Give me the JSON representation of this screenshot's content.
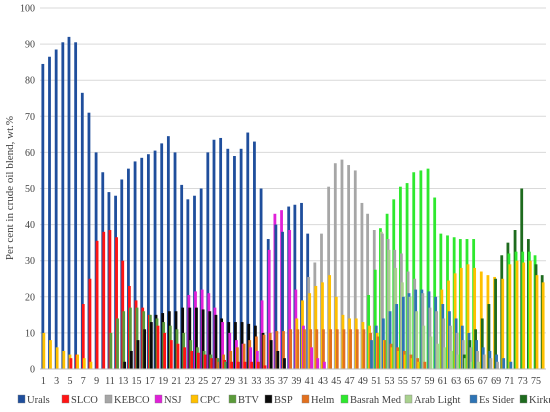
{
  "chart_data": {
    "type": "bar",
    "xlabel": "",
    "ylabel": "Per cent in crude oil blend, wt.%",
    "ylim": [
      0,
      100
    ],
    "yticks": [
      0,
      10,
      20,
      30,
      40,
      50,
      60,
      70,
      80,
      90,
      100
    ],
    "x_tick_labels": [
      "1",
      "3",
      "5",
      "7",
      "9",
      "11",
      "13",
      "15",
      "17",
      "19",
      "21",
      "23",
      "25",
      "27",
      "29",
      "31",
      "33",
      "35",
      "37",
      "39",
      "41",
      "43",
      "45",
      "47",
      "49",
      "51",
      "53",
      "55",
      "57",
      "59",
      "61",
      "63",
      "65",
      "67",
      "69",
      "71",
      "73",
      "75"
    ],
    "n_blends": 76,
    "grid": true,
    "legend_position": "bottom",
    "series": [
      {
        "name": "Urals",
        "color": "#1f4e9c",
        "values": [
          84.5,
          86.5,
          88.5,
          90.5,
          92,
          90.5,
          76.5,
          71,
          60,
          54.5,
          49,
          48,
          52.5,
          55.5,
          57.5,
          58.5,
          59.5,
          60.5,
          62.5,
          64.5,
          60,
          51,
          47,
          48,
          50,
          60,
          63.5,
          64,
          61,
          59,
          61,
          65.5,
          63,
          50,
          36,
          40,
          38,
          45,
          45.5,
          46,
          37.5,
          0,
          0,
          0,
          0,
          0,
          0,
          0,
          0,
          0,
          0,
          0,
          0,
          0,
          0,
          0,
          0,
          0,
          0,
          0,
          0,
          0,
          0,
          0,
          0,
          0,
          0,
          0,
          0,
          0,
          0,
          0,
          0,
          0,
          0,
          0
        ]
      },
      {
        "name": "SLCO",
        "color": "#ff1414",
        "values": [
          0,
          0,
          0,
          0,
          3,
          4,
          18,
          25,
          35.5,
          38,
          38.5,
          36.5,
          30,
          23,
          19,
          17,
          15,
          12,
          10,
          8,
          7,
          6,
          5,
          4.5,
          4,
          3,
          3,
          2.5,
          2,
          2,
          2,
          2,
          2,
          1,
          0,
          0,
          0,
          0,
          0,
          0,
          0,
          0,
          0,
          0,
          0,
          0,
          0,
          0,
          0,
          0,
          0,
          0,
          0,
          0,
          0,
          0,
          0,
          0,
          0,
          0,
          0,
          0,
          0,
          0,
          0,
          0,
          0,
          0,
          0,
          0,
          0,
          0,
          0,
          0,
          0,
          0
        ]
      },
      {
        "name": "KEBCO",
        "color": "#a6a6a6",
        "values": [
          0,
          0,
          0,
          0,
          0,
          0,
          0,
          0,
          0,
          0,
          0,
          0,
          0,
          0,
          0,
          0,
          0,
          0,
          0,
          0,
          0,
          0,
          0,
          0,
          0,
          0,
          0,
          0,
          0,
          0,
          0,
          0,
          0,
          0,
          0,
          0,
          0,
          0,
          0,
          0,
          25.5,
          29.5,
          37.5,
          50.5,
          57,
          58,
          56.5,
          55,
          46,
          43,
          38.5,
          37.5,
          36,
          33,
          32,
          27,
          25,
          21,
          17,
          16,
          14,
          12,
          10,
          8,
          6,
          5,
          4,
          3,
          2,
          0,
          0,
          0,
          0,
          0,
          0,
          0
        ]
      },
      {
        "name": "NSJ",
        "color": "#e020d8",
        "values": [
          0,
          0,
          0,
          0,
          0,
          0,
          0,
          0,
          0,
          0,
          0,
          0,
          0,
          0,
          0,
          0,
          0,
          0,
          0,
          0,
          0,
          0,
          20.5,
          21.5,
          22,
          21,
          17,
          13,
          10,
          8,
          7,
          6,
          5,
          19,
          33,
          43,
          44,
          38.5,
          22,
          12,
          6,
          3,
          2,
          0,
          0,
          0,
          0,
          0,
          0,
          0,
          0,
          0,
          0,
          0,
          0,
          0,
          0,
          0,
          0,
          0,
          0,
          0,
          0,
          0,
          0,
          0,
          0,
          0,
          0,
          0,
          0,
          0,
          0,
          0,
          0,
          0
        ]
      },
      {
        "name": "CPC",
        "color": "#ffc000",
        "values": [
          10,
          8,
          6,
          5,
          4,
          4,
          3,
          2,
          0,
          0,
          0,
          0,
          0,
          0,
          0,
          0,
          0,
          0,
          0,
          0,
          0,
          0,
          0,
          0,
          0,
          0,
          0,
          0,
          0,
          0,
          0,
          0,
          0,
          0,
          0,
          0,
          0,
          0,
          14,
          19,
          21,
          23,
          24,
          26,
          20,
          15,
          14,
          14,
          13,
          12,
          10,
          8,
          6,
          5,
          4,
          3,
          2,
          0,
          0,
          0,
          22,
          24.5,
          26.5,
          28,
          29,
          28,
          27,
          26,
          25.5,
          25,
          29,
          30,
          29.5,
          30,
          26,
          24
        ]
      },
      {
        "name": "BTV",
        "color": "#5b9b3a",
        "values": [
          0,
          0,
          0,
          0,
          0,
          0,
          0,
          0,
          0,
          0,
          10,
          14,
          16,
          17,
          17,
          16,
          15,
          14,
          13,
          12,
          11,
          10,
          8,
          6,
          5,
          4,
          3,
          2,
          0,
          0,
          0,
          0,
          0,
          0,
          0,
          0,
          0,
          0,
          0,
          0,
          0,
          0,
          0,
          0,
          0,
          0,
          0,
          0,
          0,
          0,
          0,
          0,
          0,
          0,
          0,
          0,
          0,
          0,
          0,
          0,
          0,
          0,
          0,
          0,
          0,
          0,
          0,
          0,
          0,
          0,
          0,
          0,
          0,
          0,
          0,
          0
        ]
      },
      {
        "name": "BSP",
        "color": "#0a0a0a",
        "values": [
          0,
          0,
          0,
          0,
          0,
          0,
          0,
          0,
          0,
          0,
          0,
          0,
          2,
          5,
          8,
          11,
          13,
          15,
          15.5,
          16,
          16,
          17,
          17,
          17,
          16.5,
          16,
          15,
          14,
          13,
          13,
          13,
          12.5,
          12,
          10,
          8,
          5,
          3,
          0,
          0,
          0,
          0,
          0,
          0,
          0,
          0,
          0,
          0,
          0,
          0,
          0,
          0,
          0,
          0,
          0,
          0,
          0,
          0,
          0,
          0,
          0,
          0,
          0,
          0,
          0,
          0,
          0,
          0,
          0,
          0,
          0,
          0,
          0,
          0,
          0,
          0,
          0
        ]
      },
      {
        "name": "Helm",
        "color": "#e2701e",
        "values": [
          0,
          0,
          0,
          0,
          0,
          0,
          0,
          0,
          0,
          0,
          0,
          0,
          0,
          0,
          0,
          0,
          0,
          0,
          0,
          0,
          0,
          0,
          0,
          0,
          0,
          0,
          2,
          4,
          5,
          6,
          7,
          8,
          9,
          9.5,
          10,
          10.5,
          10.5,
          11,
          11,
          11,
          11,
          11,
          11,
          11,
          11,
          11,
          11,
          11,
          11,
          10,
          9,
          8,
          7,
          6,
          5,
          4,
          3,
          2,
          0,
          0,
          0,
          0,
          0,
          0,
          0,
          0,
          0,
          0,
          0,
          0,
          0,
          0,
          0,
          0,
          0,
          0
        ]
      },
      {
        "name": "Basrah Med",
        "color": "#2ee82e",
        "values": [
          0,
          0,
          0,
          0,
          0,
          0,
          0,
          0,
          0,
          0,
          0,
          0,
          0,
          0,
          0,
          0,
          0,
          0,
          0,
          0,
          0,
          0,
          0,
          0,
          0,
          0,
          0,
          0,
          0,
          0,
          0,
          0,
          0,
          0,
          0,
          0,
          0,
          0,
          0,
          0,
          0,
          0,
          0,
          0,
          0,
          0,
          0,
          0,
          0,
          20.5,
          27.5,
          39,
          43,
          47,
          50.5,
          51.5,
          54.5,
          55,
          55.5,
          47.5,
          37.5,
          37,
          36.5,
          36,
          36,
          36,
          0,
          0,
          0,
          0,
          32,
          32.5,
          32.5,
          32.5,
          31.5,
          0
        ]
      },
      {
        "name": "Arab Light",
        "color": "#a9d18e",
        "values": [
          0,
          0,
          0,
          0,
          0,
          0,
          0,
          0,
          0,
          0,
          0,
          0,
          0,
          0,
          0,
          0,
          0,
          0,
          0,
          0,
          0,
          0,
          0,
          0,
          0,
          0,
          0,
          0,
          0,
          0,
          0,
          0,
          0,
          0,
          0,
          0,
          0,
          0,
          0,
          0,
          0,
          0,
          0,
          0,
          0,
          0,
          0,
          0,
          0,
          0,
          0,
          38,
          33,
          28,
          24,
          20,
          16,
          12,
          9,
          7,
          6,
          5,
          4,
          3,
          2,
          2,
          0,
          0,
          0,
          0,
          0,
          0,
          0,
          0,
          0,
          0
        ]
      },
      {
        "name": "Es Sider",
        "color": "#2e74b5",
        "values": [
          0,
          0,
          0,
          0,
          0,
          0,
          0,
          0,
          0,
          0,
          0,
          0,
          0,
          0,
          0,
          0,
          0,
          0,
          0,
          0,
          0,
          0,
          0,
          0,
          0,
          0,
          0,
          0,
          0,
          0,
          0,
          0,
          0,
          0,
          0,
          0,
          0,
          0,
          0,
          0,
          0,
          0,
          0,
          0,
          0,
          0,
          0,
          0,
          0,
          8,
          12,
          14,
          16,
          18,
          20,
          21,
          22,
          22,
          21.5,
          20,
          18,
          16,
          14,
          12,
          10,
          8,
          6,
          5,
          4,
          3,
          2,
          0,
          0,
          0,
          0,
          0
        ]
      },
      {
        "name": "Kirkuk AR",
        "color": "#1e6b1e",
        "values": [
          0,
          0,
          0,
          0,
          0,
          0,
          0,
          0,
          0,
          0,
          0,
          0,
          0,
          0,
          0,
          0,
          0,
          0,
          0,
          0,
          0,
          0,
          0,
          0,
          0,
          0,
          0,
          0,
          0,
          0,
          0,
          0,
          0,
          0,
          0,
          0,
          0,
          0,
          0,
          0,
          0,
          0,
          0,
          0,
          0,
          0,
          0,
          0,
          0,
          0,
          0,
          0,
          0,
          0,
          0,
          0,
          0,
          0,
          0,
          0,
          0,
          0,
          0,
          4,
          8,
          11,
          14,
          18,
          25,
          31.5,
          35,
          38.5,
          50,
          36,
          29,
          26
        ]
      }
    ]
  }
}
